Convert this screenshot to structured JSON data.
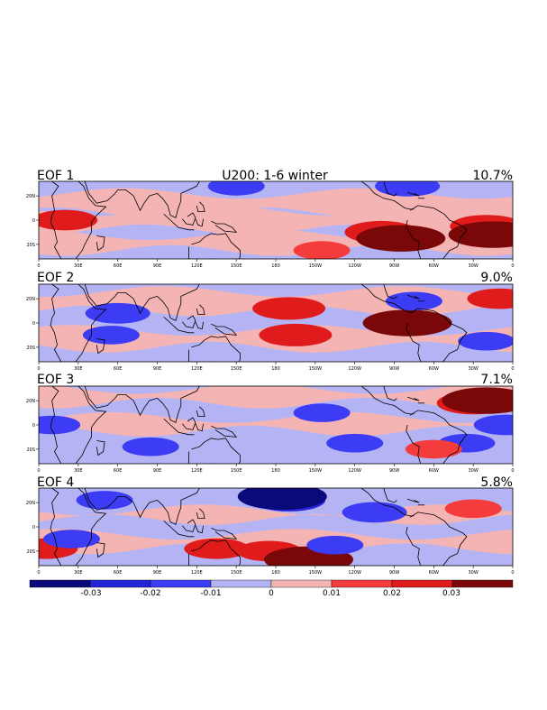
{
  "chart_data": {
    "type": "heatmap",
    "title": "U200: 1-6 winter",
    "variable": "U200",
    "colorbar": {
      "labels": [
        "-0.03",
        "-0.02",
        "-0.01",
        "0",
        "0.01",
        "0.02",
        "0.03"
      ],
      "levels": [
        -0.04,
        -0.03,
        -0.02,
        -0.01,
        0,
        0.01,
        0.02,
        0.03,
        0.04
      ],
      "colors": [
        "#0a0a7a",
        "#2525d8",
        "#3c3cf5",
        "#b4b4f5",
        "#f5b4b4",
        "#f53c3c",
        "#e01b1b",
        "#7a0808"
      ]
    },
    "x_ticks": [
      "0",
      "30E",
      "60E",
      "90E",
      "120E",
      "150E",
      "180",
      "150W",
      "120W",
      "90W",
      "60W",
      "30W",
      "0"
    ],
    "y_ticks": [
      "20N",
      "0",
      "20S"
    ],
    "panels": [
      {
        "label": "EOF 1",
        "variance": "10.7%",
        "anomalies": [
          {
            "lon": 20,
            "lat": 0,
            "value": 0.02
          },
          {
            "lon": 260,
            "lat": -10,
            "value": 0.025
          },
          {
            "lon": 275,
            "lat": -15,
            "value": 0.035
          },
          {
            "lon": 340,
            "lat": -5,
            "value": 0.025
          },
          {
            "lon": 345,
            "lat": -12,
            "value": 0.035
          },
          {
            "lon": 150,
            "lat": 28,
            "value": -0.015
          },
          {
            "lon": 280,
            "lat": 28,
            "value": -0.02
          },
          {
            "lon": 215,
            "lat": -25,
            "value": 0.015
          }
        ]
      },
      {
        "label": "EOF 2",
        "variance": "9.0%",
        "anomalies": [
          {
            "lon": 60,
            "lat": 8,
            "value": -0.02
          },
          {
            "lon": 55,
            "lat": -10,
            "value": -0.015
          },
          {
            "lon": 190,
            "lat": 12,
            "value": 0.025
          },
          {
            "lon": 195,
            "lat": -10,
            "value": 0.025
          },
          {
            "lon": 275,
            "lat": 0,
            "value": 0.025
          },
          {
            "lon": 280,
            "lat": 0,
            "value": 0.035
          },
          {
            "lon": 350,
            "lat": 20,
            "value": 0.02
          },
          {
            "lon": 340,
            "lat": -15,
            "value": -0.015
          },
          {
            "lon": 285,
            "lat": 18,
            "value": -0.015
          }
        ]
      },
      {
        "label": "EOF 3",
        "variance": "7.1%",
        "anomalies": [
          {
            "lon": 330,
            "lat": 18,
            "value": 0.025
          },
          {
            "lon": 340,
            "lat": 20,
            "value": 0.035
          },
          {
            "lon": 355,
            "lat": 0,
            "value": -0.02
          },
          {
            "lon": 325,
            "lat": -15,
            "value": -0.015
          },
          {
            "lon": 215,
            "lat": 10,
            "value": -0.015
          },
          {
            "lon": 240,
            "lat": -15,
            "value": -0.015
          },
          {
            "lon": 10,
            "lat": 0,
            "value": -0.015
          },
          {
            "lon": 85,
            "lat": -18,
            "value": -0.015
          },
          {
            "lon": 300,
            "lat": -20,
            "value": 0.015
          }
        ]
      },
      {
        "label": "EOF 4",
        "variance": "5.8%",
        "anomalies": [
          {
            "lon": 190,
            "lat": 22,
            "value": -0.025
          },
          {
            "lon": 185,
            "lat": 25,
            "value": -0.035
          },
          {
            "lon": 255,
            "lat": 12,
            "value": -0.02
          },
          {
            "lon": 135,
            "lat": -18,
            "value": 0.02
          },
          {
            "lon": 175,
            "lat": -20,
            "value": 0.02
          },
          {
            "lon": 205,
            "lat": -27,
            "value": 0.035
          },
          {
            "lon": 5,
            "lat": -18,
            "value": 0.02
          },
          {
            "lon": 50,
            "lat": 22,
            "value": -0.015
          },
          {
            "lon": 25,
            "lat": -10,
            "value": -0.015
          },
          {
            "lon": 225,
            "lat": -15,
            "value": -0.015
          },
          {
            "lon": 330,
            "lat": 15,
            "value": 0.015
          }
        ]
      }
    ]
  }
}
